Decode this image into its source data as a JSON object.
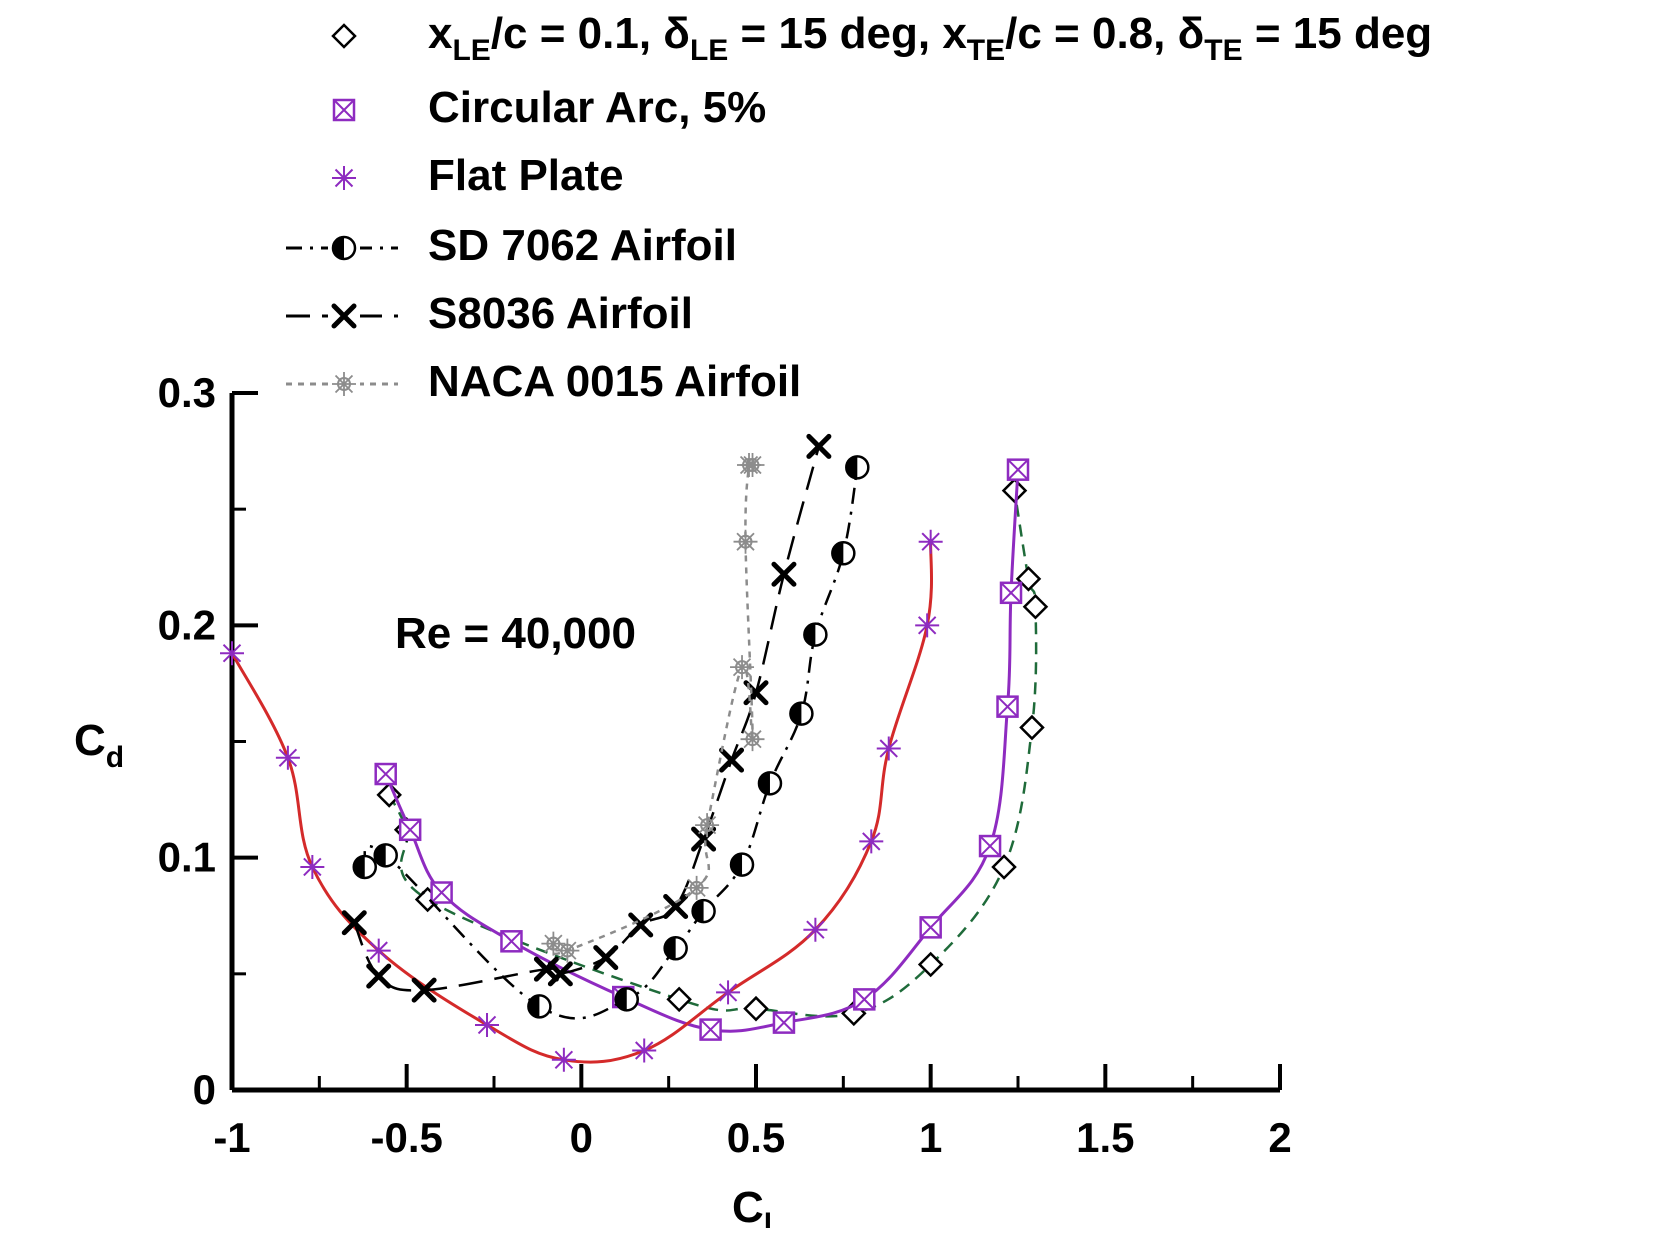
{
  "chart_data": {
    "type": "line",
    "xlabel_main": "C",
    "xlabel_sub": "l",
    "ylabel_main": "C",
    "ylabel_sub": "d",
    "xlim": [
      -1,
      2
    ],
    "ylim": [
      0,
      0.3
    ],
    "x_ticks": [
      "-1",
      "-0.5",
      "0",
      "0.5",
      "1",
      "1.5",
      "2"
    ],
    "y_ticks": [
      "0",
      "0.1",
      "0.2",
      "0.3"
    ],
    "annotation": "Re = 40,000",
    "legend": {
      "placement": "top",
      "entries": [
        {
          "parts": [
            {
              "t": "x",
              "s": ""
            },
            {
              "t": "LE",
              "s": "sub"
            },
            {
              "t": "/c = 0.1, ",
              "s": ""
            },
            {
              "t": "δ",
              "s": ""
            },
            {
              "t": "LE",
              "s": "sub"
            },
            {
              "t": " = 15 deg, x",
              "s": ""
            },
            {
              "t": "TE",
              "s": "sub"
            },
            {
              "t": "/c = 0.8, ",
              "s": ""
            },
            {
              "t": "δ",
              "s": ""
            },
            {
              "t": "TE",
              "s": "sub"
            },
            {
              "t": " = 15 deg",
              "s": ""
            }
          ]
        },
        {
          "parts": [
            {
              "t": "Circular Arc, 5%",
              "s": ""
            }
          ]
        },
        {
          "parts": [
            {
              "t": "Flat Plate",
              "s": ""
            }
          ]
        },
        {
          "parts": [
            {
              "t": "SD 7062 Airfoil",
              "s": ""
            }
          ]
        },
        {
          "parts": [
            {
              "t": "S8036 Airfoil",
              "s": ""
            }
          ]
        },
        {
          "parts": [
            {
              "t": "NACA 0015 Airfoil",
              "s": ""
            }
          ]
        }
      ]
    },
    "series": [
      {
        "marker": "diamond",
        "line": "dashed",
        "color": "#1f6b3a",
        "marker_color": "#000000",
        "x": [
          -0.55,
          -0.5,
          -0.44,
          0.28,
          0.5,
          0.78,
          1.0,
          1.21,
          1.29,
          1.3,
          1.28,
          1.24
        ],
        "y": [
          0.127,
          0.112,
          0.082,
          0.039,
          0.035,
          0.033,
          0.054,
          0.096,
          0.156,
          0.208,
          0.22,
          0.258
        ]
      },
      {
        "marker": "boxx",
        "line": "solid",
        "color": "#8e2bc0",
        "marker_color": "#8e2bc0",
        "x": [
          -0.56,
          -0.49,
          -0.4,
          -0.2,
          0.12,
          0.37,
          0.58,
          0.81,
          1.0,
          1.17,
          1.22,
          1.23,
          1.25
        ],
        "y": [
          0.136,
          0.112,
          0.085,
          0.064,
          0.04,
          0.026,
          0.029,
          0.039,
          0.07,
          0.105,
          0.165,
          0.214,
          0.267
        ]
      },
      {
        "marker": "asterisk",
        "line": "solid",
        "color": "#d42a2a",
        "marker_color": "#8e2bc0",
        "x": [
          -1.0,
          -0.84,
          -0.77,
          -0.58,
          -0.27,
          -0.05,
          0.18,
          0.42,
          0.67,
          0.83,
          0.88,
          0.99,
          1.0
        ],
        "y": [
          0.188,
          0.143,
          0.096,
          0.06,
          0.028,
          0.013,
          0.017,
          0.042,
          0.069,
          0.107,
          0.147,
          0.2,
          0.236
        ]
      },
      {
        "marker": "halfcircle",
        "line": "dashdot",
        "color": "#000000",
        "marker_color": "#000000",
        "x": [
          -0.62,
          -0.56,
          -0.12,
          0.13,
          0.27,
          0.35,
          0.46,
          0.54,
          0.63,
          0.67,
          0.75,
          0.79
        ],
        "y": [
          0.096,
          0.101,
          0.036,
          0.039,
          0.061,
          0.077,
          0.097,
          0.132,
          0.162,
          0.196,
          0.231,
          0.268
        ]
      },
      {
        "marker": "x",
        "line": "longdash",
        "color": "#000000",
        "marker_color": "#000000",
        "x": [
          -0.65,
          -0.58,
          -0.45,
          -0.1,
          -0.06,
          0.07,
          0.17,
          0.27,
          0.35,
          0.43,
          0.5,
          0.58,
          0.68
        ],
        "y": [
          0.072,
          0.049,
          0.043,
          0.052,
          0.05,
          0.057,
          0.071,
          0.079,
          0.108,
          0.142,
          0.171,
          0.222,
          0.277
        ]
      },
      {
        "marker": "star",
        "line": "dotted",
        "color": "#8c8c8c",
        "marker_color": "#8c8c8c",
        "x": [
          -0.08,
          -0.04,
          0.33,
          0.36,
          0.46,
          0.49,
          0.47,
          0.48,
          0.49
        ],
        "y": [
          0.063,
          0.06,
          0.087,
          0.114,
          0.182,
          0.151,
          0.236,
          0.269,
          0.269
        ]
      }
    ]
  }
}
